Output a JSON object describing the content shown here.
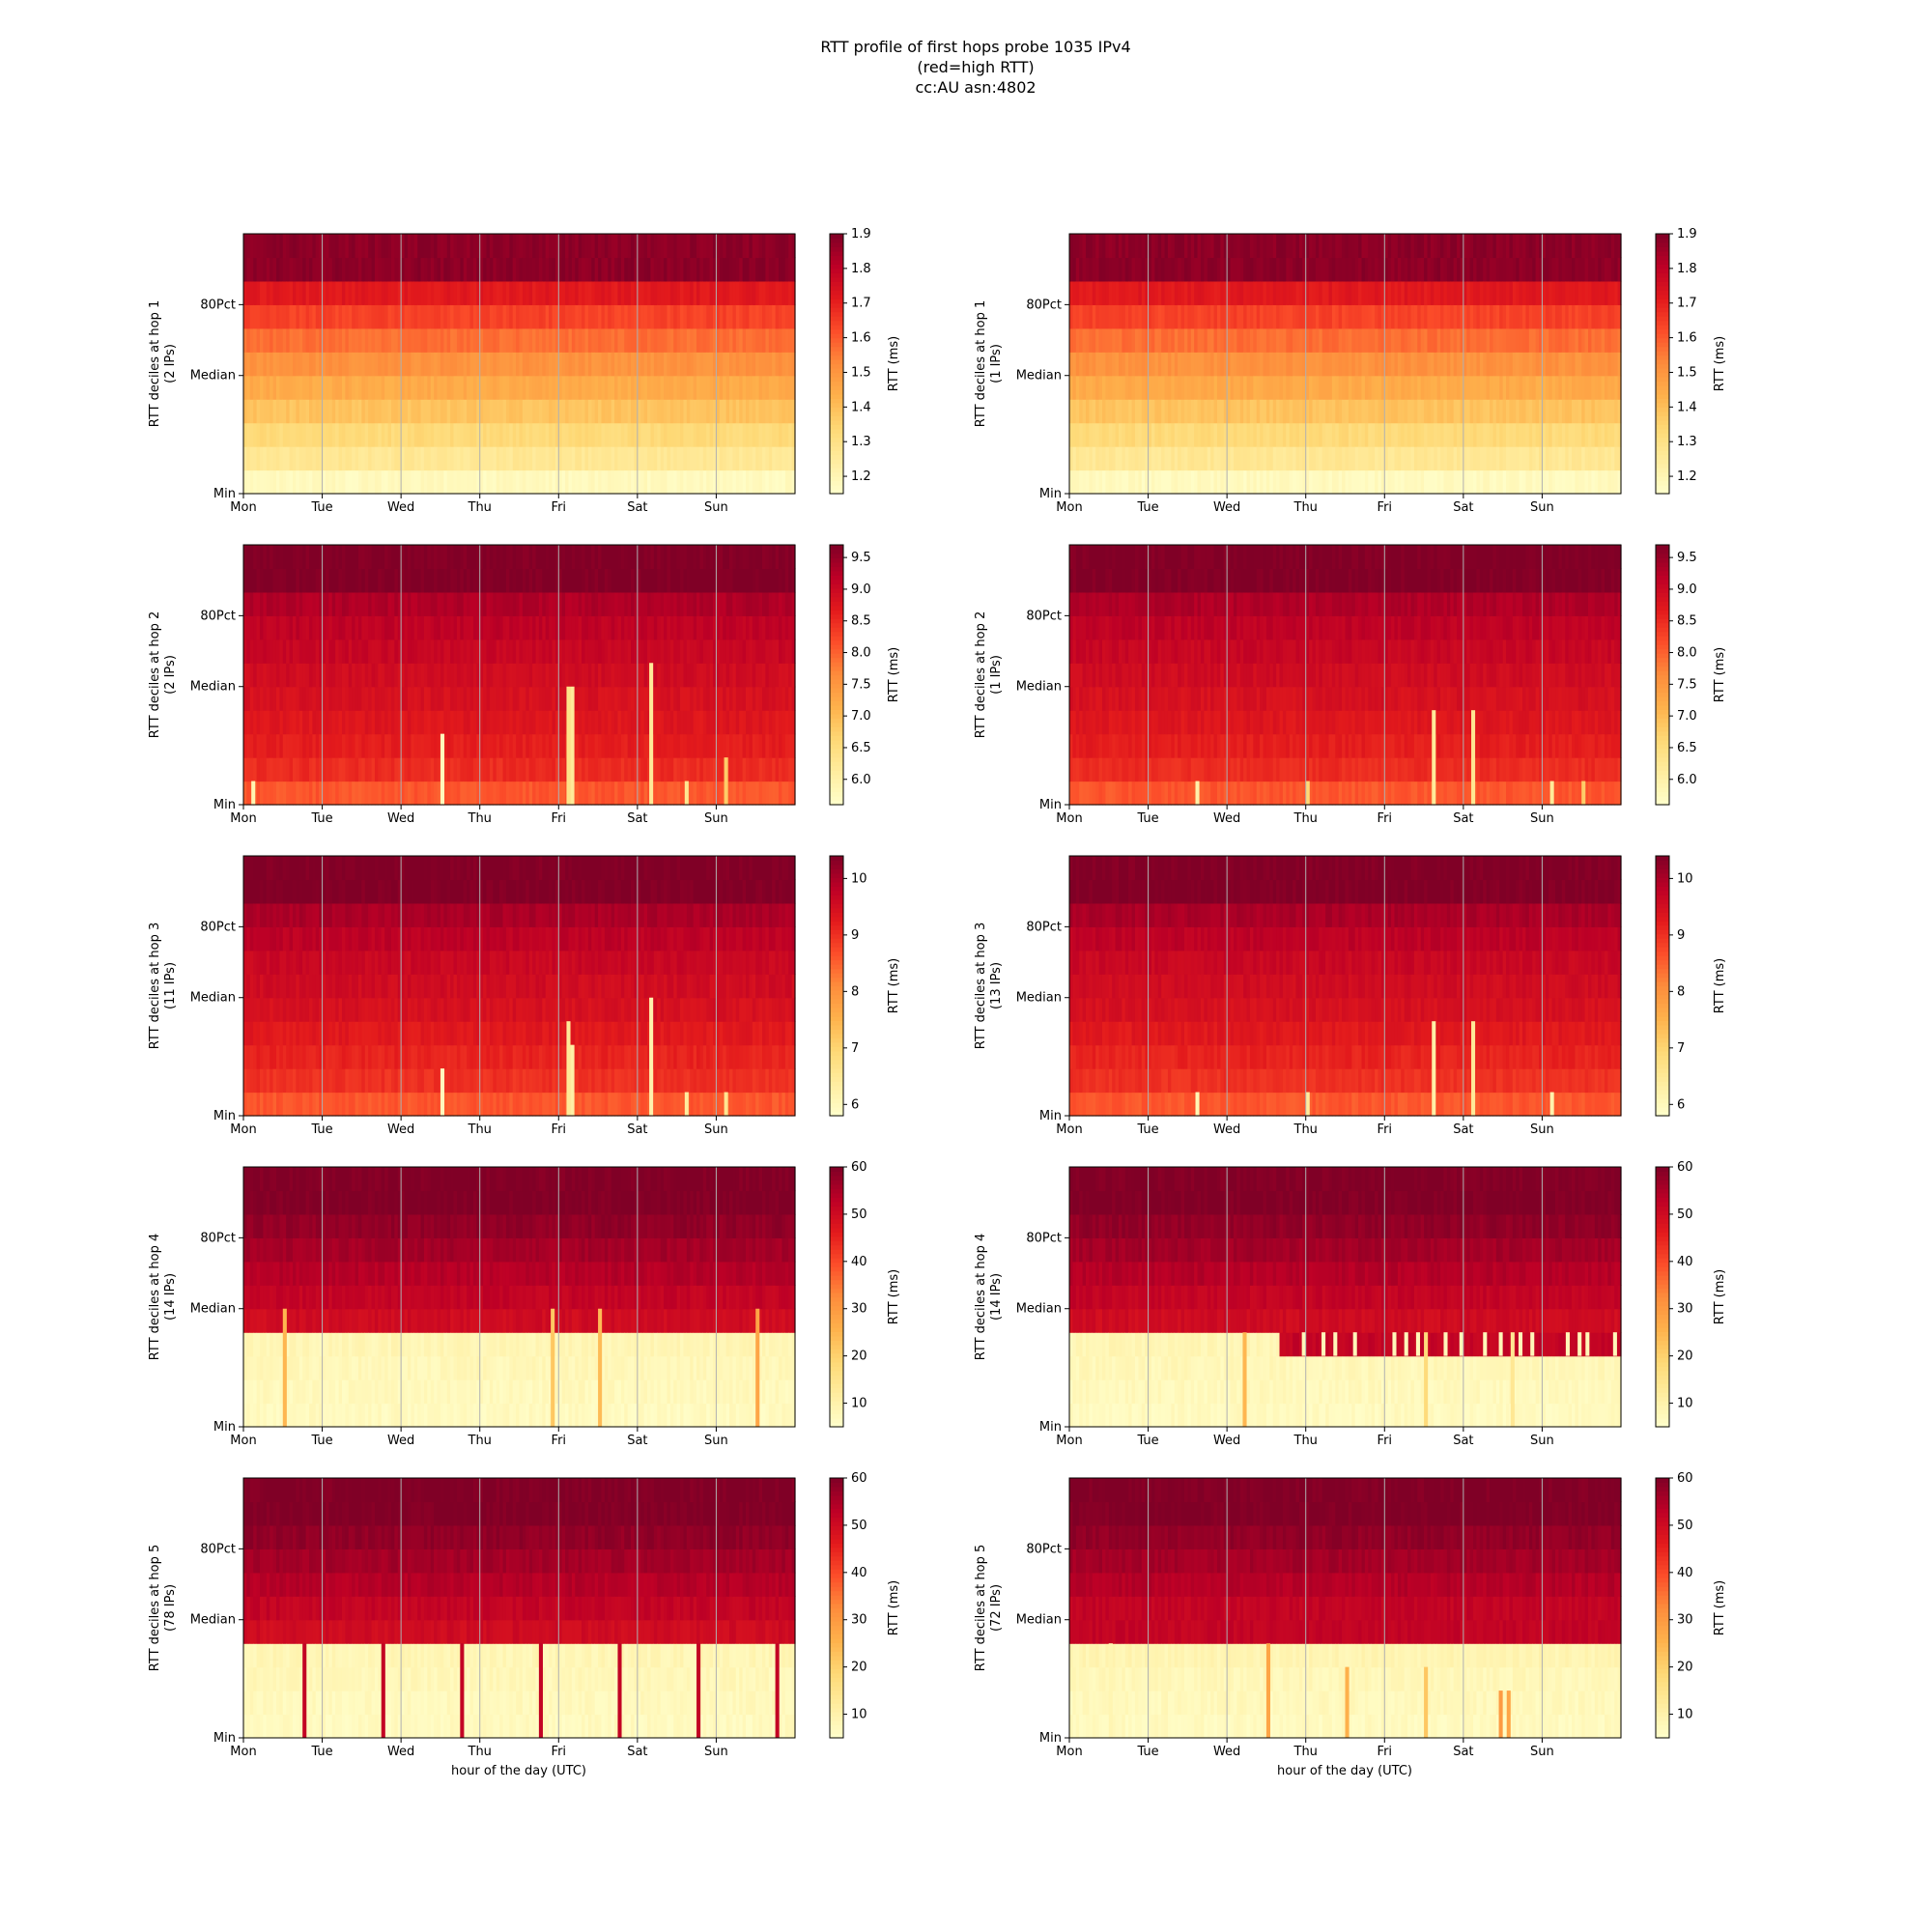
{
  "figure": {
    "title_lines": [
      "RTT profile of first hops probe 1035 IPv4",
      "(red=high RTT)",
      "cc:AU asn:4802"
    ],
    "xlabel": "hour of the day (UTC)",
    "colorbar_label": "RTT (ms)",
    "colormap": "YlOrRd",
    "colors": {
      "low": "#ffffcc",
      "mid": "#fd8d3c",
      "high": "#800026",
      "gridline": "#b0b0b0"
    }
  },
  "chart_data": [
    {
      "type": "heatmap",
      "hop": 1,
      "ips": 2,
      "ylabel": [
        "RTT deciles at hop 1",
        "(2 IPs)"
      ],
      "x_ticks": [
        "Mon",
        "Tue",
        "Wed",
        "Thu",
        "Fri",
        "Sat",
        "Sun"
      ],
      "y_ticks": [
        "Min",
        "Median",
        "80Pct"
      ],
      "colorbar": {
        "range": [
          1.15,
          1.9
        ],
        "ticks": [
          "1.2",
          "1.3",
          "1.4",
          "1.5",
          "1.6",
          "1.7",
          "1.8",
          "1.9"
        ]
      },
      "decile_values": [
        1.18,
        1.27,
        1.33,
        1.39,
        1.45,
        1.51,
        1.57,
        1.64,
        1.72,
        1.88
      ],
      "spikes": [],
      "step": null
    },
    {
      "type": "heatmap",
      "hop": 1,
      "ips": 1,
      "ylabel": [
        "RTT deciles at hop 1",
        "(1 IPs)"
      ],
      "x_ticks": [
        "Mon",
        "Tue",
        "Wed",
        "Thu",
        "Fri",
        "Sat",
        "Sun"
      ],
      "y_ticks": [
        "Min",
        "Median",
        "80Pct"
      ],
      "colorbar": {
        "range": [
          1.15,
          1.9
        ],
        "ticks": [
          "1.2",
          "1.3",
          "1.4",
          "1.5",
          "1.6",
          "1.7",
          "1.8",
          "1.9"
        ]
      },
      "decile_values": [
        1.18,
        1.27,
        1.33,
        1.39,
        1.45,
        1.51,
        1.57,
        1.64,
        1.72,
        1.88
      ],
      "spikes": [],
      "step": null
    },
    {
      "type": "heatmap",
      "hop": 2,
      "ips": 2,
      "ylabel": [
        "RTT deciles at hop 2",
        "(2 IPs)"
      ],
      "x_ticks": [
        "Mon",
        "Tue",
        "Wed",
        "Thu",
        "Fri",
        "Sat",
        "Sun"
      ],
      "y_ticks": [
        "Min",
        "Median",
        "80Pct"
      ],
      "colorbar": {
        "range": [
          5.6,
          9.7
        ],
        "ticks": [
          "6.0",
          "6.5",
          "7.0",
          "7.5",
          "8.0",
          "8.5",
          "9.0",
          "9.5"
        ]
      },
      "decile_values": [
        8.1,
        8.5,
        8.65,
        8.75,
        8.85,
        8.95,
        9.05,
        9.15,
        9.3,
        9.7
      ],
      "spikes": [
        [
          0.1,
          1,
          5.9
        ],
        [
          2.5,
          3,
          5.8
        ],
        [
          4.1,
          5,
          6.4
        ],
        [
          4.15,
          5,
          6.2
        ],
        [
          5.15,
          6,
          6.2
        ],
        [
          5.6,
          1,
          6.3
        ],
        [
          6.1,
          2,
          6.8
        ]
      ],
      "step": null
    },
    {
      "type": "heatmap",
      "hop": 2,
      "ips": 1,
      "ylabel": [
        "RTT deciles at hop 2",
        "(1 IPs)"
      ],
      "x_ticks": [
        "Mon",
        "Tue",
        "Wed",
        "Thu",
        "Fri",
        "Sat",
        "Sun"
      ],
      "y_ticks": [
        "Min",
        "Median",
        "80Pct"
      ],
      "colorbar": {
        "range": [
          5.6,
          9.7
        ],
        "ticks": [
          "6.0",
          "6.5",
          "7.0",
          "7.5",
          "8.0",
          "8.5",
          "9.0",
          "9.5"
        ]
      },
      "decile_values": [
        8.1,
        8.5,
        8.65,
        8.75,
        8.85,
        8.95,
        9.05,
        9.15,
        9.3,
        9.7
      ],
      "spikes": [
        [
          1.6,
          1,
          6.0
        ],
        [
          3.0,
          1,
          6.6
        ],
        [
          4.6,
          4,
          6.2
        ],
        [
          5.1,
          4,
          6.3
        ],
        [
          6.1,
          1,
          6.2
        ],
        [
          6.5,
          1,
          6.8
        ]
      ],
      "step": null
    },
    {
      "type": "heatmap",
      "hop": 3,
      "ips": 11,
      "ylabel": [
        "RTT deciles at hop 3",
        "(11 IPs)"
      ],
      "x_ticks": [
        "Mon",
        "Tue",
        "Wed",
        "Thu",
        "Fri",
        "Sat",
        "Sun"
      ],
      "y_ticks": [
        "Min",
        "Median",
        "80Pct"
      ],
      "colorbar": {
        "range": [
          5.8,
          10.4
        ],
        "ticks": [
          "6",
          "7",
          "8",
          "9",
          "10"
        ]
      },
      "decile_values": [
        8.6,
        9.0,
        9.15,
        9.3,
        9.45,
        9.55,
        9.65,
        9.8,
        10.0,
        10.4
      ],
      "spikes": [
        [
          2.5,
          2,
          6.0
        ],
        [
          4.1,
          4,
          6.5
        ],
        [
          4.15,
          3,
          6.3
        ],
        [
          5.15,
          5,
          6.2
        ],
        [
          5.6,
          1,
          6.4
        ],
        [
          6.1,
          1,
          6.6
        ]
      ],
      "step": null
    },
    {
      "type": "heatmap",
      "hop": 3,
      "ips": 13,
      "ylabel": [
        "RTT deciles at hop 3",
        "(13 IPs)"
      ],
      "x_ticks": [
        "Mon",
        "Tue",
        "Wed",
        "Thu",
        "Fri",
        "Sat",
        "Sun"
      ],
      "y_ticks": [
        "Min",
        "Median",
        "80Pct"
      ],
      "colorbar": {
        "range": [
          5.8,
          10.4
        ],
        "ticks": [
          "6",
          "7",
          "8",
          "9",
          "10"
        ]
      },
      "decile_values": [
        8.6,
        9.0,
        9.15,
        9.3,
        9.45,
        9.55,
        9.65,
        9.8,
        10.0,
        10.4
      ],
      "spikes": [
        [
          1.6,
          1,
          6.1
        ],
        [
          3.0,
          1,
          6.4
        ],
        [
          4.6,
          4,
          6.3
        ],
        [
          5.1,
          4,
          6.5
        ],
        [
          6.1,
          1,
          6.2
        ]
      ],
      "step": null
    },
    {
      "type": "heatmap",
      "hop": 4,
      "ips": 14,
      "ylabel": [
        "RTT deciles at hop 4",
        "(14 IPs)"
      ],
      "x_ticks": [
        "Mon",
        "Tue",
        "Wed",
        "Thu",
        "Fri",
        "Sat",
        "Sun"
      ],
      "y_ticks": [
        "Min",
        "Median",
        "80Pct"
      ],
      "colorbar": {
        "range": [
          5,
          60
        ],
        "ticks": [
          "10",
          "20",
          "30",
          "40",
          "50",
          "60"
        ]
      },
      "decile_values": [
        7,
        7.5,
        8,
        8.5,
        50,
        52,
        54,
        56,
        58,
        60
      ],
      "spikes": [
        [
          0.5,
          5,
          25
        ],
        [
          3.9,
          5,
          22
        ],
        [
          4.5,
          5,
          24
        ],
        [
          6.5,
          5,
          28
        ]
      ],
      "step": null
    },
    {
      "type": "heatmap",
      "hop": 4,
      "ips": 14,
      "ylabel": [
        "RTT deciles at hop 4",
        "(14 IPs)"
      ],
      "x_ticks": [
        "Mon",
        "Tue",
        "Wed",
        "Thu",
        "Fri",
        "Sat",
        "Sun"
      ],
      "y_ticks": [
        "Min",
        "Median",
        "80Pct"
      ],
      "colorbar": {
        "range": [
          5,
          60
        ],
        "ticks": [
          "10",
          "20",
          "30",
          "40",
          "50",
          "60"
        ]
      },
      "decile_values": [
        7,
        7.5,
        8,
        8.5,
        50,
        52,
        54,
        56,
        58,
        60
      ],
      "spikes": [
        [
          2.2,
          4,
          25
        ],
        [
          4.5,
          4,
          18
        ],
        [
          5.6,
          4,
          14
        ]
      ],
      "step": {
        "from_day": 2.65,
        "row": 3,
        "value": 52,
        "markers_value": 8,
        "markers_x": [
          2.95,
          3.2,
          3.35,
          3.6,
          4.1,
          4.25,
          4.4,
          4.75,
          4.95,
          5.25,
          5.45,
          5.7,
          5.85,
          6.3,
          6.45,
          6.55,
          6.9
        ]
      }
    },
    {
      "type": "heatmap",
      "hop": 5,
      "ips": 78,
      "ylabel": [
        "RTT deciles at hop 5",
        "(78 IPs)"
      ],
      "x_ticks": [
        "Mon",
        "Tue",
        "Wed",
        "Thu",
        "Fri",
        "Sat",
        "Sun"
      ],
      "y_ticks": [
        "Min",
        "Median",
        "80Pct"
      ],
      "colorbar": {
        "range": [
          5,
          60
        ],
        "ticks": [
          "10",
          "20",
          "30",
          "40",
          "50",
          "60"
        ]
      },
      "decile_values": [
        7,
        7.5,
        8,
        8.5,
        50,
        52,
        54,
        56,
        58,
        60
      ],
      "spikes": [
        [
          0.75,
          4,
          52
        ],
        [
          1.75,
          4,
          52
        ],
        [
          2.75,
          4,
          52
        ],
        [
          3.75,
          4,
          52
        ],
        [
          4.75,
          4,
          52
        ],
        [
          5.75,
          4,
          52
        ],
        [
          6.75,
          4,
          52
        ]
      ],
      "step": null
    },
    {
      "type": "heatmap",
      "hop": 5,
      "ips": 72,
      "ylabel": [
        "RTT deciles at hop 5",
        "(72 IPs)"
      ],
      "x_ticks": [
        "Mon",
        "Tue",
        "Wed",
        "Thu",
        "Fri",
        "Sat",
        "Sun"
      ],
      "y_ticks": [
        "Min",
        "Median",
        "80Pct"
      ],
      "colorbar": {
        "range": [
          5,
          60
        ],
        "ticks": [
          "10",
          "20",
          "30",
          "40",
          "50",
          "60"
        ]
      },
      "decile_values": [
        7,
        7.5,
        8,
        9,
        52,
        52,
        54,
        56,
        58,
        60
      ],
      "spikes": [
        [
          0.5,
          4,
          9
        ],
        [
          2.5,
          4,
          28
        ],
        [
          3.5,
          3,
          26
        ],
        [
          4.5,
          3,
          22
        ],
        [
          5.45,
          2,
          30
        ],
        [
          5.55,
          2,
          28
        ]
      ],
      "step": null
    }
  ]
}
